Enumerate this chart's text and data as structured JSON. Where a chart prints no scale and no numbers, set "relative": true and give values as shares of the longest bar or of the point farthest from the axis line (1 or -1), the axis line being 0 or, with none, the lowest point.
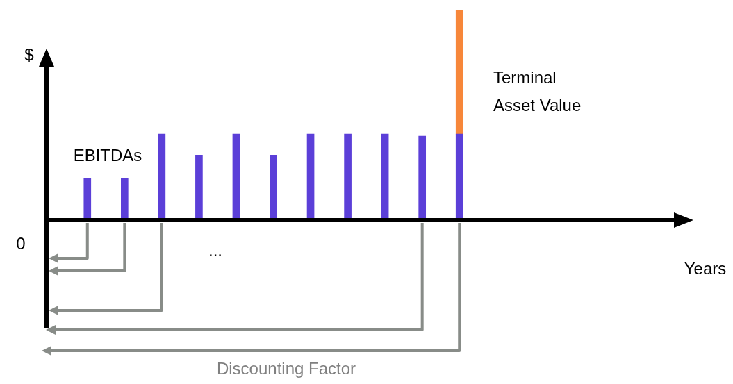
{
  "chart_data": {
    "type": "bar",
    "relative": true,
    "stacked": true,
    "categories": [
      null,
      null,
      null,
      null,
      null,
      null,
      null,
      null,
      null,
      null,
      null
    ],
    "series": [
      {
        "color": "#5b3fd8",
        "values": [
          0.2,
          0.2,
          0.41,
          0.31,
          0.41,
          0.31,
          0.41,
          0.41,
          0.41,
          0.4,
          0.41
        ]
      },
      {
        "color": "#f7873a",
        "values": [
          null,
          null,
          null,
          null,
          null,
          null,
          null,
          null,
          null,
          null,
          0.59
        ]
      }
    ],
    "annotations": [
      "$",
      "0",
      "Years",
      "EBITDAs",
      "Terminal Asset Value",
      "...",
      "Discounting Factor"
    ]
  }
}
